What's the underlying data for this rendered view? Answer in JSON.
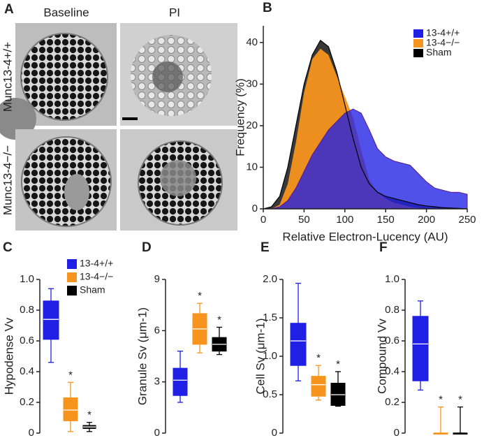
{
  "panel_a": {
    "label": "A",
    "columns": [
      "Baseline",
      "PI"
    ],
    "rows": [
      "Munc13-4+/+",
      "Munc13-4−/−"
    ]
  },
  "chart_data": [
    {
      "type": "area",
      "label": "B",
      "xlabel": "Relative Electron-Lucency (AU)",
      "ylabel": "Frequency (%)",
      "x": [
        0,
        10,
        20,
        30,
        40,
        50,
        60,
        70,
        80,
        90,
        100,
        110,
        120,
        130,
        140,
        150,
        160,
        170,
        180,
        190,
        200,
        210,
        220,
        230,
        240,
        250
      ],
      "series": [
        {
          "name": "Sham",
          "color": "#000000",
          "values": [
            0,
            0.5,
            3,
            10,
            20,
            30,
            37,
            40.5,
            39,
            33,
            25,
            17,
            10,
            6,
            4,
            3,
            2.5,
            2,
            1.5,
            1,
            0.7,
            0.5,
            0.3,
            0.2,
            0.1,
            0
          ]
        },
        {
          "name": "13-4−/−",
          "color": "#f7941d",
          "values": [
            0,
            0,
            1,
            6,
            16,
            28,
            36,
            38.5,
            37,
            32,
            27,
            22,
            14,
            7,
            4,
            2.5,
            1.5,
            1,
            0.5,
            0.2,
            0,
            0,
            0,
            0,
            0,
            0
          ]
        },
        {
          "name": "13-4+/+",
          "color": "#1f1fe6",
          "values": [
            0,
            0,
            0.5,
            2,
            5,
            9,
            13,
            16,
            19,
            21,
            23,
            24,
            23,
            19,
            14.5,
            12.5,
            11.5,
            11,
            10.5,
            8.5,
            6.5,
            5,
            4.5,
            4,
            4,
            3.5
          ]
        }
      ],
      "legend_order": [
        2,
        1,
        0
      ],
      "legend": "upper right",
      "xlim": [
        0,
        250
      ],
      "xticks": [
        0,
        50,
        100,
        150,
        200,
        250
      ],
      "ylim": [
        0,
        44
      ],
      "yticks": [
        0,
        10,
        20,
        30,
        40
      ]
    },
    {
      "type": "box",
      "label": "C",
      "ylabel": "Hypodense Vv",
      "ylim": [
        0,
        1
      ],
      "yticks": [
        0,
        0.2,
        0.4,
        0.6,
        0.8,
        {
          "value": 1,
          "label": "1.0"
        }
      ],
      "legend": "upper right",
      "series": [
        {
          "name": "13-4+/+",
          "color": "#1f1fe6",
          "values": [
            0.46,
            0.61,
            0.74,
            0.86,
            0.94
          ]
        },
        {
          "name": "13-4−/−",
          "color": "#f7941d",
          "values": [
            0.01,
            0.08,
            0.15,
            0.23,
            0.33
          ],
          "annotation": "*"
        },
        {
          "name": "Sham",
          "color": "#000000",
          "values": [
            0.01,
            0.03,
            0.04,
            0.05,
            0.07
          ],
          "annotation": "*"
        }
      ]
    },
    {
      "type": "box",
      "label": "D",
      "ylabel": "Granule Sv (μm-1)",
      "ylim": [
        0,
        9
      ],
      "yticks": [
        0,
        3,
        6,
        9
      ],
      "series": [
        {
          "color": "#1f1fe6",
          "values": [
            1.8,
            2.2,
            3.1,
            3.8,
            4.8
          ]
        },
        {
          "color": "#f7941d",
          "values": [
            4.7,
            5.2,
            6.1,
            7.0,
            7.6
          ],
          "annotation": "*"
        },
        {
          "color": "#000000",
          "values": [
            4.6,
            4.8,
            5.2,
            5.6,
            6.2
          ],
          "annotation": "*"
        }
      ]
    },
    {
      "type": "box",
      "label": "E",
      "ylabel": "Cell Sv (μm-1)",
      "ylim": [
        0,
        2
      ],
      "yticks": [
        0,
        0.5,
        {
          "value": 1,
          "label": "1.0"
        },
        1.5,
        {
          "value": 2,
          "label": "2.0"
        }
      ],
      "series": [
        {
          "color": "#1f1fe6",
          "values": [
            0.68,
            0.88,
            1.2,
            1.43,
            1.95
          ]
        },
        {
          "color": "#f7941d",
          "values": [
            0.43,
            0.48,
            0.63,
            0.74,
            0.88
          ],
          "annotation": "*"
        },
        {
          "color": "#000000",
          "values": [
            0.35,
            0.36,
            0.5,
            0.65,
            0.8
          ],
          "annotation": "*"
        }
      ]
    },
    {
      "type": "box",
      "label": "F",
      "ylabel": "Compound Vv",
      "ylim": [
        0,
        1
      ],
      "yticks": [
        0,
        0.2,
        0.4,
        0.6,
        0.8,
        {
          "value": 1,
          "label": "1.0"
        }
      ],
      "series": [
        {
          "color": "#1f1fe6",
          "values": [
            0.28,
            0.34,
            0.58,
            0.76,
            0.86
          ]
        },
        {
          "color": "#f7941d",
          "values": [
            0,
            0,
            0,
            0,
            0.17
          ],
          "annotation": "*"
        },
        {
          "color": "#000000",
          "values": [
            0,
            0,
            0,
            0,
            0.17
          ],
          "annotation": "*"
        }
      ]
    }
  ]
}
